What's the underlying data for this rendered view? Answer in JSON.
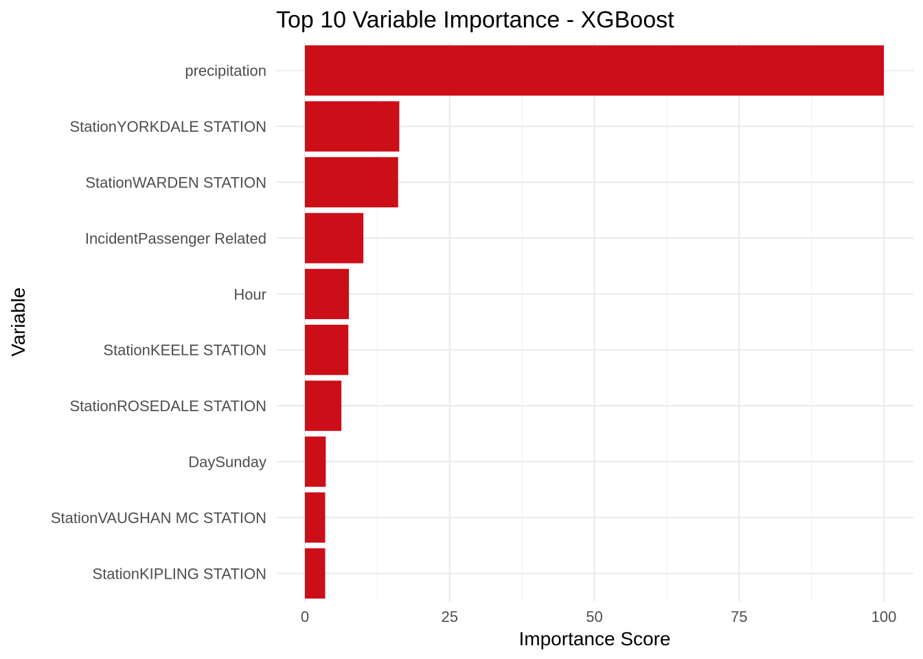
{
  "chart_data": {
    "type": "bar",
    "orientation": "horizontal",
    "title": "Top 10 Variable Importance - XGBoost",
    "xlabel": "Importance Score",
    "ylabel": "Variable",
    "xlim": [
      0,
      100
    ],
    "xticks": [
      0,
      25,
      50,
      75,
      100
    ],
    "grid": true,
    "bar_color": "#CC0E18",
    "categories": [
      "precipitation",
      "StationYORKDALE STATION",
      "StationWARDEN STATION",
      "IncidentPassenger Related",
      "Hour",
      "StationKEELE STATION",
      "StationROSEDALE STATION",
      "DaySunday",
      "StationVAUGHAN MC STATION",
      "StationKIPLING STATION"
    ],
    "values": [
      100,
      16.3,
      16.1,
      10.1,
      7.6,
      7.5,
      6.3,
      3.6,
      3.5,
      3.5
    ]
  }
}
